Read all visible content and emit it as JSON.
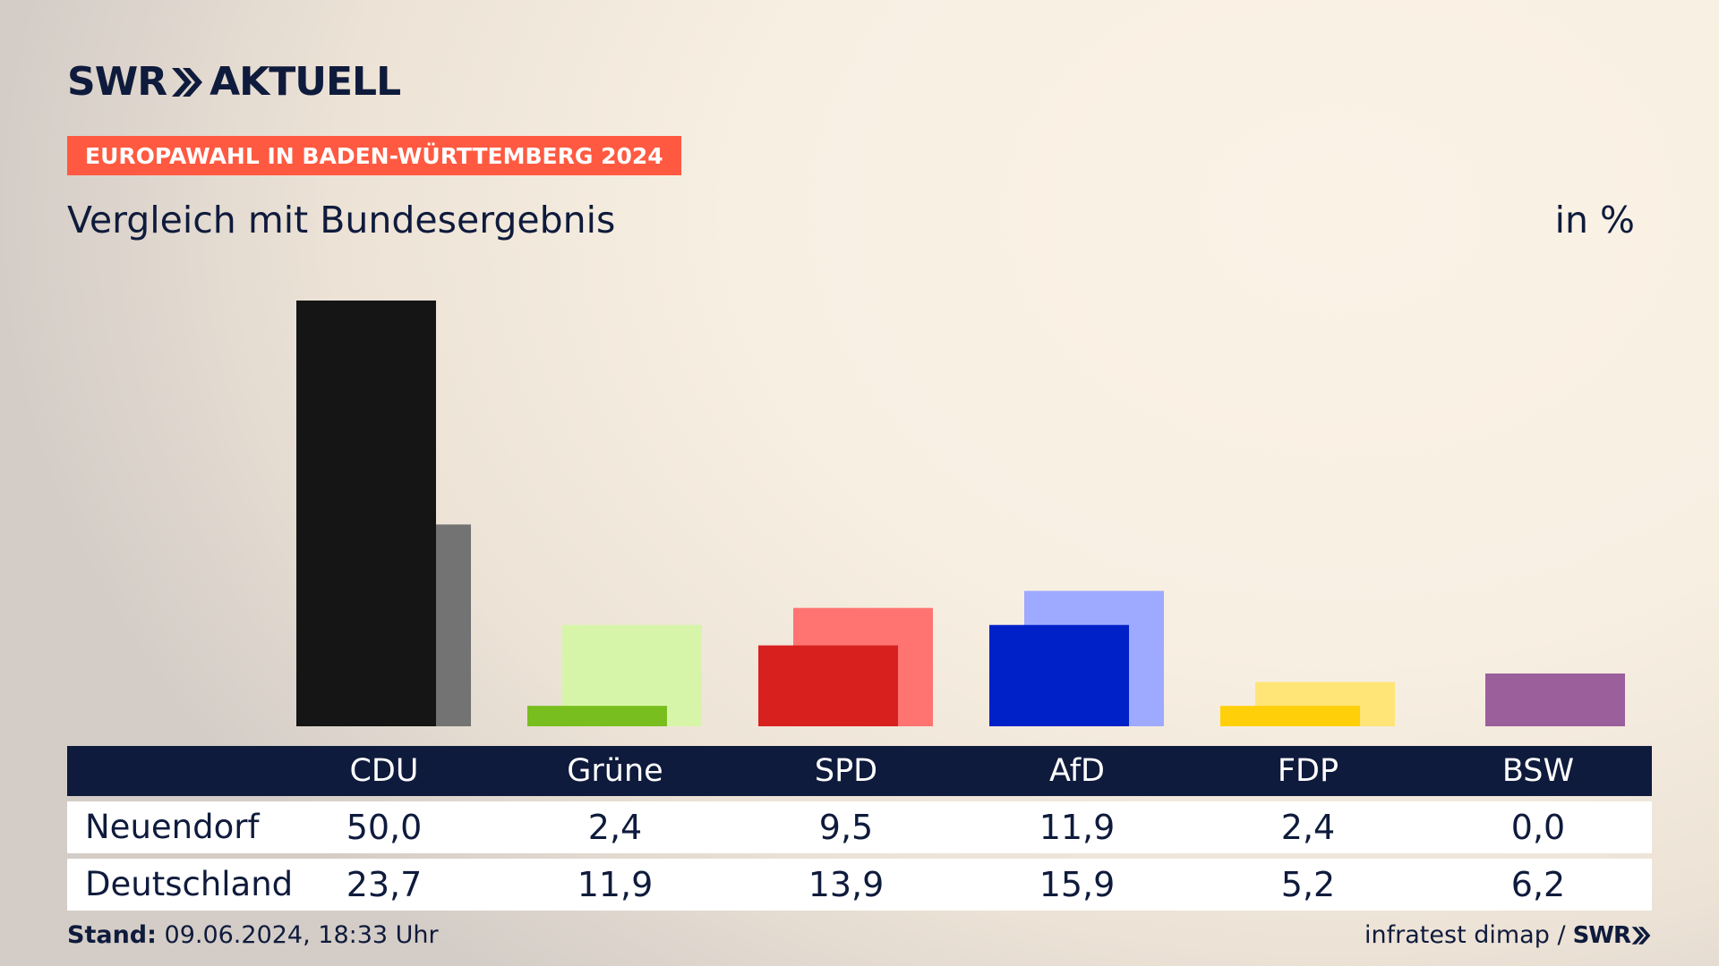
{
  "header": {
    "logo_left": "SWR",
    "logo_right": "AKTUELL",
    "badge": "EUROPAWAHL IN BADEN-WÜRTTEMBERG 2024"
  },
  "chart_data": {
    "type": "bar",
    "title": "Vergleich mit Bundesergebnis",
    "unit": "in %",
    "categories": [
      "CDU",
      "Grüne",
      "SPD",
      "AfD",
      "FDP",
      "BSW"
    ],
    "series": [
      {
        "name": "Neuendorf",
        "values": [
          50.0,
          2.4,
          9.5,
          11.9,
          2.4,
          0.0
        ],
        "colors": [
          "#151515",
          "#78be1e",
          "#d8201f",
          "#0020c8",
          "#ffcf0a",
          "#9b5f9b"
        ]
      },
      {
        "name": "Deutschland",
        "values": [
          23.7,
          11.9,
          13.9,
          15.9,
          5.2,
          6.2
        ],
        "colors": [
          "#737373",
          "#d7f5a8",
          "#ff7470",
          "#9eaaff",
          "#ffe477",
          "#9b5f9b"
        ]
      }
    ],
    "ylim": [
      0,
      50
    ],
    "table": {
      "header": [
        "CDU",
        "Grüne",
        "SPD",
        "AfD",
        "FDP",
        "BSW"
      ],
      "rows": [
        {
          "label": "Neuendorf",
          "cells": [
            "50,0",
            "2,4",
            "9,5",
            "11,9",
            "2,4",
            "0,0"
          ]
        },
        {
          "label": "Deutschland",
          "cells": [
            "23,7",
            "11,9",
            "13,9",
            "15,9",
            "5,2",
            "6,2"
          ]
        }
      ]
    }
  },
  "footer": {
    "stand_label": "Stand:",
    "stand_value": "09.06.2024, 18:33 Uhr",
    "source": "infratest dimap /",
    "source_logo": "SWR"
  }
}
